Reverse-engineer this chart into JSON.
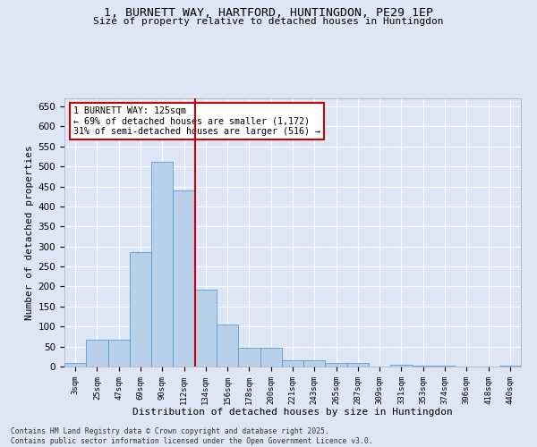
{
  "title_line1": "1, BURNETT WAY, HARTFORD, HUNTINGDON, PE29 1EP",
  "title_line2": "Size of property relative to detached houses in Huntingdon",
  "xlabel": "Distribution of detached houses by size in Huntingdon",
  "ylabel": "Number of detached properties",
  "bin_labels": [
    "3sqm",
    "25sqm",
    "47sqm",
    "69sqm",
    "90sqm",
    "112sqm",
    "134sqm",
    "156sqm",
    "178sqm",
    "200sqm",
    "221sqm",
    "243sqm",
    "265sqm",
    "287sqm",
    "309sqm",
    "331sqm",
    "353sqm",
    "374sqm",
    "396sqm",
    "418sqm",
    "440sqm"
  ],
  "bar_values": [
    8,
    67,
    67,
    285,
    511,
    440,
    193,
    106,
    46,
    46,
    16,
    16,
    8,
    8,
    0,
    5,
    2,
    2,
    0,
    0,
    3
  ],
  "bar_color": "#b8d0ea",
  "bar_edge_color": "#5b9bd5",
  "vline_index": 5,
  "vline_color": "#cc0000",
  "annotation_text": "1 BURNETT WAY: 125sqm\n← 69% of detached houses are smaller (1,172)\n31% of semi-detached houses are larger (516) →",
  "annotation_box_color": "#ffffff",
  "annotation_box_edge": "#cc0000",
  "ylim": [
    0,
    670
  ],
  "yticks": [
    0,
    50,
    100,
    150,
    200,
    250,
    300,
    350,
    400,
    450,
    500,
    550,
    600,
    650
  ],
  "background_color": "#dce6f5",
  "grid_color": "#ffffff",
  "footnote": "Contains HM Land Registry data © Crown copyright and database right 2025.\nContains public sector information licensed under the Open Government Licence v3.0."
}
